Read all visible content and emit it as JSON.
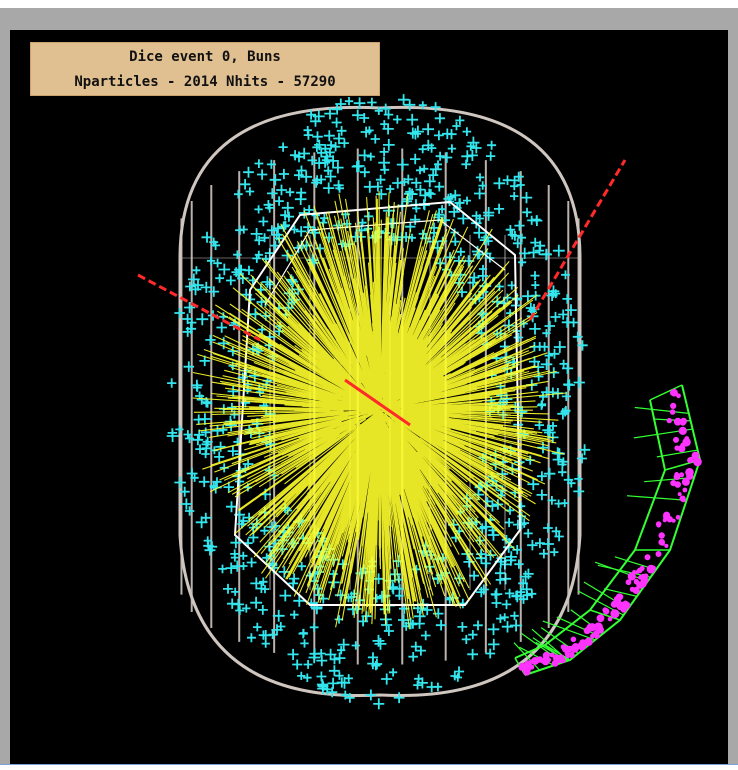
{
  "info_box": {
    "line1": "Dice event 0, Buns",
    "line2": "Nparticles - 2014  Nhits - 57290"
  },
  "colors": {
    "background": "#000000",
    "frame": "#a8a8a8",
    "label_bg": "#e0bf90",
    "outer_detector": "#cfc6c0",
    "inner_detector": "#ffffff",
    "tracks": "#ffff2a",
    "hits": "#33e6ee",
    "calorimeter": "#33ff33",
    "calorimeter_hits": "#ff33ff",
    "beam": "#ff2a2a"
  }
}
